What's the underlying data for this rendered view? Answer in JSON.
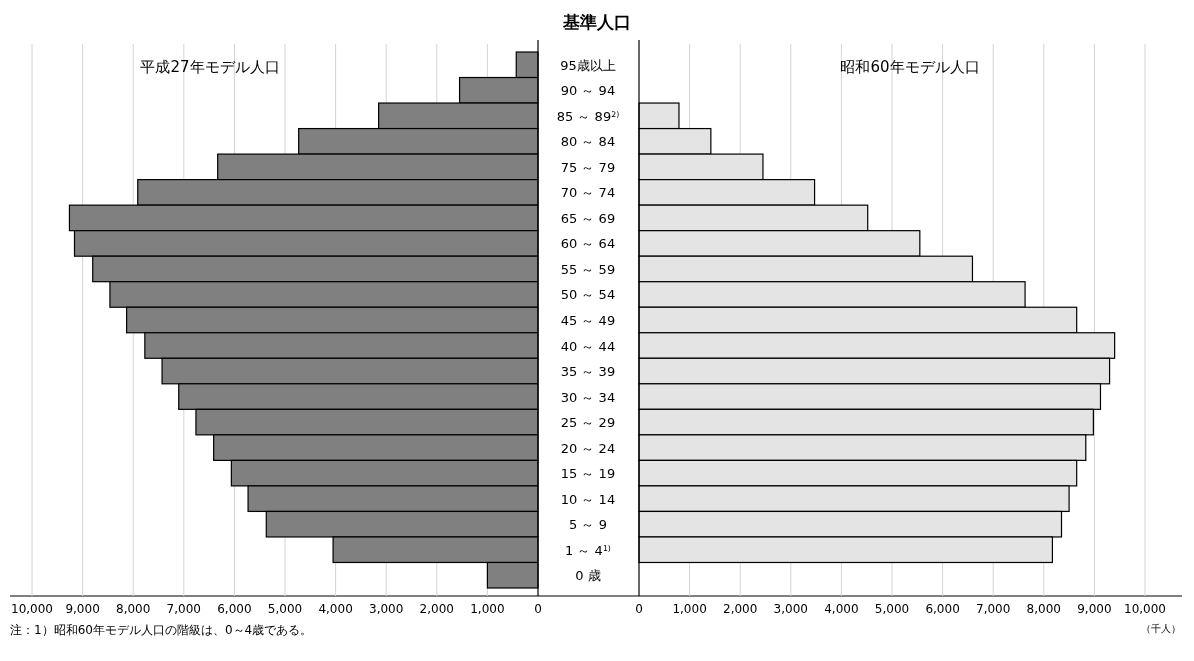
{
  "chart_data": [
    {
      "type": "bar",
      "orientation": "horizontal",
      "title": "基準人口",
      "categories": [
        "95歳以上",
        "90 ～ 94",
        "85 ～ 89$^{2)}$",
        "80 ～ 84",
        "75 ～ 79",
        "70 ～ 74",
        "65 ～ 69",
        "60 ～ 64",
        "55 ～ 59",
        "50 ～ 54",
        "45 ～ 49",
        "40 ～ 44",
        "35 ～ 39",
        "30 ～ 34",
        "25 ～ 29",
        "20 ～ 24",
        "15 ～ 19",
        "10 ～ 14",
        "5 ～ 9",
        "1 ～ 4$^{1)}$",
        "0 歳"
      ],
      "series": [
        {
          "name": "平成27年モデル人口",
          "color": "#808080",
          "values": [
            430,
            1550,
            3150,
            4730,
            6330,
            7910,
            9260,
            9160,
            8800,
            8460,
            8130,
            7770,
            7430,
            7100,
            6760,
            6410,
            6060,
            5730,
            5370,
            4050,
            1000
          ]
        }
      ],
      "xlim": [
        10000,
        0
      ],
      "xticks": [
        {
          "value": 10000,
          "label": "10,000"
        },
        {
          "value": 9000,
          "label": "9,000"
        },
        {
          "value": 8000,
          "label": "8,000"
        },
        {
          "value": 7000,
          "label": "7,000"
        },
        {
          "value": 6000,
          "label": "6,000"
        },
        {
          "value": 5000,
          "label": "5,000"
        },
        {
          "value": 4000,
          "label": "4,000"
        },
        {
          "value": 3000,
          "label": "3,000"
        },
        {
          "value": 2000,
          "label": "2,000"
        },
        {
          "value": 1000,
          "label": "1,000"
        },
        0
      ],
      "grid": "x",
      "annotations": [
        "注：1）昭和60年モデル人口の階級は、0～4歳である。"
      ]
    },
    {
      "type": "bar",
      "orientation": "horizontal",
      "series": [
        {
          "name": "昭和60年モデル人口",
          "color": "#e4e4e4",
          "values": [
            null,
            null,
            790,
            1420,
            2450,
            3470,
            4520,
            5550,
            6590,
            7630,
            8650,
            9400,
            9300,
            9120,
            8980,
            8830,
            8650,
            8500,
            8350,
            8170,
            null
          ]
        }
      ],
      "xlim": [
        0,
        10000
      ],
      "xticks": [
        0,
        {
          "value": 1000,
          "label": "1,000"
        },
        {
          "value": 2000,
          "label": "2,000"
        },
        {
          "value": 3000,
          "label": "3,000"
        },
        {
          "value": 4000,
          "label": "4,000"
        },
        {
          "value": 5000,
          "label": "5,000"
        },
        {
          "value": 6000,
          "label": "6,000"
        },
        {
          "value": 7000,
          "label": "7,000"
        },
        {
          "value": 8000,
          "label": "8,000"
        },
        {
          "value": 9000,
          "label": "9,000"
        },
        {
          "value": 10000,
          "label": "10,000"
        }
      ],
      "grid": "x",
      "xlabel": "（千人）"
    }
  ]
}
